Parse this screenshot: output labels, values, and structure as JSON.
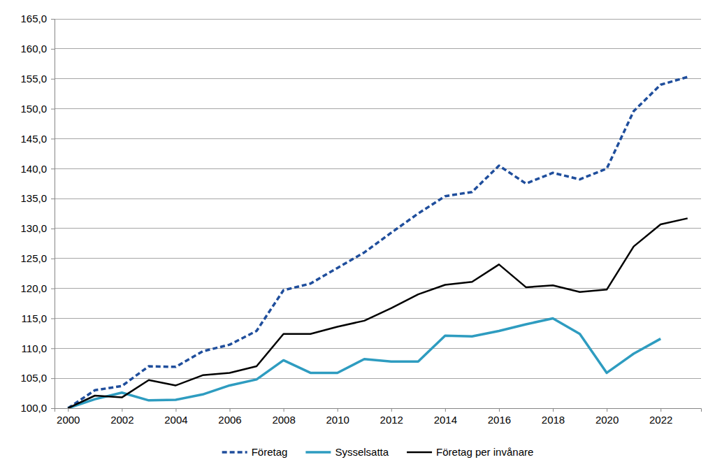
{
  "chart_data": {
    "type": "line",
    "x": [
      2000,
      2001,
      2002,
      2003,
      2004,
      2005,
      2006,
      2007,
      2008,
      2009,
      2010,
      2011,
      2012,
      2013,
      2014,
      2015,
      2016,
      2017,
      2018,
      2019,
      2020,
      2021,
      2022,
      2023
    ],
    "series": [
      {
        "name": "Företag",
        "color": "#1f4e9c",
        "line_style": "dashed",
        "values": [
          100.0,
          103.0,
          103.7,
          107.0,
          106.9,
          109.5,
          110.6,
          112.9,
          119.7,
          120.8,
          123.4,
          126.0,
          129.3,
          132.5,
          135.4,
          136.1,
          140.5,
          137.5,
          139.3,
          138.2,
          140.0,
          149.6,
          154.0,
          155.3
        ]
      },
      {
        "name": "Sysselsatta",
        "color": "#2e9cc0",
        "line_style": "solid",
        "values": [
          100.0,
          101.5,
          102.6,
          101.3,
          101.4,
          102.3,
          103.8,
          104.8,
          108.0,
          105.9,
          105.9,
          108.2,
          107.8,
          107.8,
          112.1,
          112.0,
          112.9,
          114.0,
          115.0,
          112.4,
          105.9,
          109.1,
          111.6,
          null
        ]
      },
      {
        "name": "Företag per invånare",
        "color": "#000000",
        "line_style": "solid",
        "values": [
          100.0,
          102.1,
          101.8,
          104.7,
          103.8,
          105.5,
          105.9,
          107.0,
          112.4,
          112.4,
          113.6,
          114.6,
          116.7,
          119.0,
          120.6,
          121.1,
          124.0,
          120.2,
          120.5,
          119.4,
          119.8,
          127.0,
          130.7,
          131.7
        ]
      }
    ],
    "xlim": [
      1999.5,
      2023.5
    ],
    "xticks": [
      2000,
      2002,
      2004,
      2006,
      2008,
      2010,
      2012,
      2014,
      2016,
      2018,
      2020,
      2022
    ],
    "ylim": [
      100,
      165
    ],
    "yticks": [
      {
        "value": 100,
        "label": "100,0"
      },
      {
        "value": 105,
        "label": "105,0"
      },
      {
        "value": 110,
        "label": "110,0"
      },
      {
        "value": 115,
        "label": "115,0"
      },
      {
        "value": 120,
        "label": "120,0"
      },
      {
        "value": 125,
        "label": "125,0"
      },
      {
        "value": 130,
        "label": "130,0"
      },
      {
        "value": 135,
        "label": "135,0"
      },
      {
        "value": 140,
        "label": "140,0"
      },
      {
        "value": 145,
        "label": "145,0"
      },
      {
        "value": 150,
        "label": "150,0"
      },
      {
        "value": 155,
        "label": "155,0"
      },
      {
        "value": 160,
        "label": "160,0"
      },
      {
        "value": 165,
        "label": "165,0"
      }
    ],
    "grid": true,
    "legend": "bottom"
  }
}
